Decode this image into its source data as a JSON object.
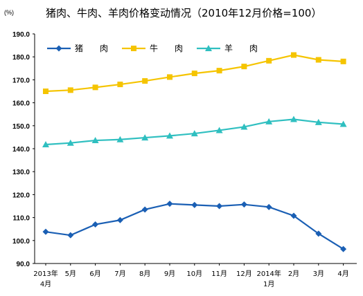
{
  "chart_data": {
    "type": "line",
    "title": "猪肉、牛肉、羊肉价格变动情况（2010年12月价格=100）",
    "ylabel": "(%)",
    "ylim": [
      90,
      190
    ],
    "yticks": [
      "190.0",
      "180.0",
      "170.0",
      "160.0",
      "150.0",
      "140.0",
      "130.0",
      "120.0",
      "110.0",
      "100.0",
      "90.0"
    ],
    "categories": [
      [
        "2013年",
        "4月"
      ],
      [
        "5月"
      ],
      [
        "6月"
      ],
      [
        "7月"
      ],
      [
        "8月"
      ],
      [
        "9月"
      ],
      [
        "10月"
      ],
      [
        "11月"
      ],
      [
        "12月"
      ],
      [
        "2014年",
        "1月"
      ],
      [
        "2月"
      ],
      [
        "3月"
      ],
      [
        "4月"
      ]
    ],
    "legend_position": "top-left",
    "series": [
      {
        "name": "猪　　肉",
        "color": "#1a5fb4",
        "marker": "diamond",
        "values": [
          103.8,
          102.3,
          107.0,
          108.9,
          113.5,
          116.0,
          115.5,
          115.0,
          115.7,
          114.6,
          110.8,
          103.0,
          96.3
        ]
      },
      {
        "name": "牛　　肉",
        "color": "#f5c400",
        "marker": "square",
        "values": [
          165.0,
          165.5,
          166.7,
          168.0,
          169.5,
          171.2,
          172.8,
          174.0,
          175.8,
          178.3,
          180.8,
          178.7,
          178.0
        ]
      },
      {
        "name": "羊　　肉",
        "color": "#2fbfc0",
        "marker": "triangle",
        "values": [
          141.8,
          142.5,
          143.6,
          144.0,
          144.8,
          145.6,
          146.6,
          148.0,
          149.5,
          151.8,
          152.8,
          151.5,
          150.7
        ]
      }
    ]
  }
}
